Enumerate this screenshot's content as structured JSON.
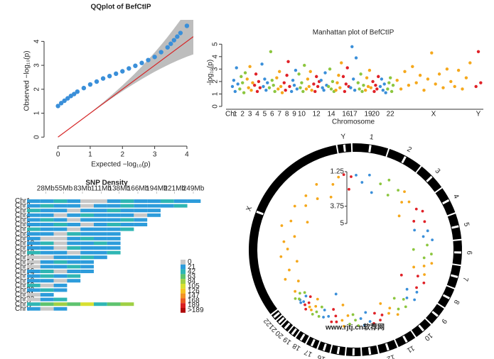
{
  "chart_data": [
    {
      "type": "scatter",
      "title": "QQplot of BefCtIP",
      "xlabel": "Expected −log₁₀(p)",
      "ylabel": "Observed −log₁₀(p)",
      "x": [
        0,
        0.1,
        0.2,
        0.3,
        0.4,
        0.5,
        0.6,
        0.8,
        1,
        1.2,
        1.4,
        1.6,
        1.8,
        2,
        2.2,
        2.4,
        2.6,
        2.8,
        3,
        3.2,
        3.4,
        3.5,
        3.6,
        3.7,
        3.8,
        4
      ],
      "values": [
        1.3,
        1.42,
        1.52,
        1.62,
        1.72,
        1.8,
        1.9,
        2.05,
        2.2,
        2.32,
        2.45,
        2.55,
        2.65,
        2.75,
        2.87,
        2.98,
        3.1,
        3.22,
        3.35,
        3.55,
        3.75,
        3.9,
        4.05,
        4.2,
        4.35,
        4.65
      ],
      "color": "#3a8fd9",
      "line_color": "#d62728",
      "band_color": "#bdbdbd",
      "xlim": [
        -0.3,
        4.2
      ],
      "xticks": [
        0,
        1,
        2,
        3,
        4
      ],
      "ylim": [
        -0.2,
        4.9
      ],
      "yticks": [
        0,
        1,
        2,
        3,
        4
      ]
    },
    {
      "type": "manhattan",
      "title": "Manhattan plot of BefCtIP",
      "xlabel": "Chromosome",
      "ylabel": "-log₁₀(p)",
      "x_start_label": "Chr",
      "categories": [
        "1",
        "2",
        "3",
        "4",
        "5",
        "6",
        "7",
        "8",
        "9",
        "10",
        null,
        "12",
        null,
        "14",
        null,
        "16",
        "17",
        null,
        "19",
        "20",
        null,
        "22",
        "X",
        "Y"
      ],
      "values": [
        [
          1.6,
          2.1,
          1.2,
          3.1,
          1.8
        ],
        [
          1.4,
          2.4,
          1.9,
          1.1,
          2.7
        ],
        [
          2.2,
          1.5,
          3.2,
          1.3,
          1.9
        ],
        [
          1.7,
          2.6,
          1.2,
          2.0,
          1.5
        ],
        [
          3.4,
          1.6,
          2.2,
          1.3,
          1.9
        ],
        [
          1.5,
          4.4,
          2.1,
          1.7,
          1.2
        ],
        [
          2.3,
          1.4,
          2.8,
          1.6,
          1.1
        ],
        [
          1.9,
          1.3,
          2.5,
          3.6,
          1.6
        ],
        [
          1.2,
          2.1,
          1.7,
          2.9,
          1.4
        ],
        [
          2.6,
          1.5,
          1.9,
          1.2,
          3.3
        ],
        [
          1.4,
          2.2,
          1.6,
          2.8,
          1.3
        ],
        [
          1.8,
          1.2,
          2.4,
          1.6,
          2.0
        ],
        [
          2.1,
          1.5,
          1.3,
          2.7,
          1.7
        ],
        [
          1.6,
          3.0,
          1.4,
          2.0,
          1.2
        ],
        [
          1.3,
          1.9,
          2.5,
          1.5,
          3.5
        ],
        [
          2.4,
          1.2,
          1.8,
          3.1,
          1.6
        ],
        [
          1.5,
          4.8,
          2.2,
          1.3,
          3.9
        ],
        [
          1.9,
          1.4,
          2.6,
          1.2,
          1.7
        ],
        [
          1.3,
          2.3,
          1.6,
          2.9,
          1.5
        ],
        [
          2.0,
          1.2,
          1.7,
          1.4,
          2.4
        ],
        [
          1.6,
          2.2,
          1.3,
          1.8,
          1.1
        ],
        [
          1.4,
          1.9,
          2.3,
          1.2,
          1.7
        ],
        [
          2.1,
          1.4,
          2.8,
          1.7,
          3.2,
          1.9,
          2.5,
          1.3,
          2.2,
          4.3,
          1.8,
          2.6,
          1.5,
          3.0,
          2.0,
          1.6,
          2.9,
          1.4,
          2.3,
          3.5
        ],
        [
          1.6,
          4.4,
          1.9
        ]
      ],
      "colors": [
        "#3a8fd9",
        "#8cc63f",
        "#f5a81c",
        "#e02127"
      ],
      "ylim": [
        0,
        5.3
      ],
      "yticks": [
        0,
        1,
        2,
        3,
        4,
        5
      ]
    },
    {
      "type": "heatmap",
      "title": "SNP Density",
      "xlim": [
        0,
        249
      ],
      "xticks": [
        {
          "value": 28,
          "label": "28Mb"
        },
        {
          "value": 55,
          "label": "55Mb"
        },
        {
          "value": 83,
          "label": "83Mb"
        },
        {
          "value": 111,
          "label": "111Mb"
        },
        {
          "value": 138,
          "label": "138Mb"
        },
        {
          "value": 166,
          "label": "166Mb"
        },
        {
          "value": 194,
          "label": "194Mb"
        },
        {
          "value": 221,
          "label": "221Mb"
        },
        {
          "value": 249,
          "label": "249Mb"
        }
      ],
      "categories": [
        "Chr1",
        "Chr2",
        "Chr3",
        "Chr4",
        "Chr5",
        "Chr6",
        "Chr7",
        "Chr8",
        "Chr9",
        "Chr10",
        "Chr11",
        "Chr12",
        "Chr13",
        "Chr14",
        "Chr15",
        "Chr16",
        "Chr17",
        "Chr18",
        "Chr19",
        "Chr20",
        "Chr21",
        "Chr22",
        "ChrX",
        "ChrY"
      ],
      "values": [
        [
          21,
          21,
          42,
          21,
          0,
          0,
          21,
          42,
          21,
          21,
          42,
          21,
          21
        ],
        [
          21,
          42,
          21,
          21,
          0,
          21,
          21,
          42,
          21,
          21,
          21,
          42
        ],
        [
          42,
          21,
          21,
          0,
          21,
          21,
          42,
          21,
          21,
          21
        ],
        [
          21,
          21,
          0,
          21,
          42,
          21,
          21,
          21,
          0,
          21
        ],
        [
          21,
          42,
          21,
          0,
          21,
          21,
          21,
          42,
          21
        ],
        [
          21,
          21,
          42,
          21,
          0,
          21,
          42,
          21,
          21
        ],
        [
          42,
          21,
          21,
          0,
          21,
          21,
          21,
          42
        ],
        [
          21,
          21,
          0,
          42,
          21,
          21,
          21
        ],
        [
          21,
          0,
          0,
          21,
          42,
          21,
          21
        ],
        [
          21,
          42,
          0,
          21,
          21,
          42,
          21
        ],
        [
          21,
          21,
          0,
          42,
          21,
          21,
          21
        ],
        [
          42,
          21,
          21,
          0,
          21,
          21,
          42
        ],
        [
          0,
          0,
          21,
          21,
          42,
          21
        ],
        [
          0,
          21,
          42,
          21,
          21
        ],
        [
          0,
          21,
          21,
          42,
          21
        ],
        [
          21,
          42,
          0,
          21,
          21
        ],
        [
          21,
          42,
          21,
          42
        ],
        [
          21,
          21,
          0,
          21
        ],
        [
          42,
          0,
          21
        ],
        [
          21,
          42,
          21
        ],
        [
          0,
          21
        ],
        [
          0,
          21,
          42
        ],
        [
          42,
          63,
          84,
          63,
          105,
          42,
          63,
          84
        ],
        [
          21,
          0,
          21
        ]
      ],
      "legend": {
        "labels": [
          "0",
          "21",
          "42",
          "63",
          "84",
          "105",
          "126",
          "147",
          "168",
          "189",
          ">189"
        ],
        "colors": [
          "#c8c8c8",
          "#2d9cdb",
          "#2fb6b4",
          "#5fc36f",
          "#9fd044",
          "#d8e031",
          "#f6c423",
          "#f29324",
          "#ea5a22",
          "#d92020",
          "#b00b0b"
        ]
      }
    },
    {
      "type": "circos",
      "categories": [
        "1",
        "2",
        "3",
        "4",
        "5",
        "6",
        "7",
        "8",
        "9",
        "10",
        "11",
        "12",
        "13",
        "14",
        "15",
        "16",
        "17",
        "18",
        "19",
        "20",
        "21",
        "22",
        "X",
        "Y"
      ],
      "values": [
        [
          1.5,
          2.0,
          1.4,
          2.6
        ],
        [
          1.8,
          1.3,
          2.3,
          1.6
        ],
        [
          1.4,
          2.1,
          1.7,
          2.9
        ],
        [
          1.6,
          1.3,
          2.2,
          1.5
        ],
        [
          2.4,
          1.5,
          1.9,
          1.3
        ],
        [
          1.7,
          2.7,
          1.4,
          1.9
        ],
        [
          1.3,
          1.8,
          2.5,
          1.6
        ],
        [
          2.0,
          1.4,
          3.1,
          1.7
        ],
        [
          1.5,
          2.2,
          1.3,
          1.8
        ],
        [
          1.9,
          1.4,
          2.4,
          1.6
        ],
        [
          1.3,
          2.0,
          1.7,
          2.6
        ],
        [
          1.8,
          1.5,
          2.1,
          1.4
        ],
        [
          1.6,
          2.3,
          1.4,
          1.9
        ],
        [
          1.4,
          1.8,
          2.2,
          1.5
        ],
        [
          2.1,
          1.3,
          1.7,
          2.8
        ],
        [
          1.5,
          1.9,
          1.4,
          2.3
        ],
        [
          1.7,
          3.4,
          1.5,
          2.0
        ],
        [
          1.4,
          2.1,
          1.6,
          1.3
        ],
        [
          1.9,
          1.5,
          2.4,
          1.6
        ],
        [
          1.3,
          1.8,
          1.5,
          2.2
        ],
        [
          1.6,
          1.4,
          2.0,
          1.5
        ],
        [
          1.5,
          2.1,
          1.3,
          1.8
        ],
        [
          1.6,
          2.2,
          1.4,
          1.9,
          2.6,
          1.5,
          2.0,
          1.7,
          2.4,
          1.3,
          1.8,
          2.9,
          1.5,
          2.1,
          1.6,
          2.3,
          1.4,
          2.7,
          1.9,
          1.5
        ],
        [
          1.4,
          2.5,
          1.6
        ]
      ],
      "colors": [
        "#3a8fd9",
        "#8cc63f",
        "#f5a81c",
        "#e02127"
      ],
      "rlim": [
        1.25,
        5
      ],
      "rticks": [
        1.25,
        3.75,
        5
      ]
    },
    {
      "type": "watermark",
      "text": "www.rjtj.cn软荐网"
    }
  ]
}
